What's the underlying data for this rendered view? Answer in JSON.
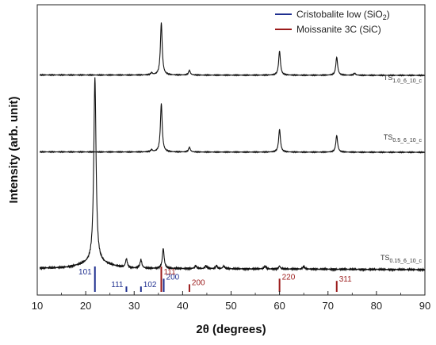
{
  "chart_data": {
    "type": "line",
    "xlabel": "2θ (degrees)",
    "ylabel": "Intensity (arb. unit)",
    "xlim": [
      10,
      90
    ],
    "x_ticks": [
      "10",
      "20",
      "30",
      "40",
      "50",
      "60",
      "70",
      "80",
      "90"
    ],
    "legend": {
      "placement": "top-right",
      "entries": [
        {
          "label_main": "Cristobalite low (SiO",
          "label_sub": "2",
          "label_end": ")",
          "color": "#1f2f8f"
        },
        {
          "label_main": "Moissanite 3C (SiC)",
          "label_sub": "",
          "label_end": "",
          "color": "#9b1b1b"
        }
      ]
    },
    "series": [
      {
        "name_main": "TS",
        "name_sub": "1.0_6_10_c",
        "baseline": 0.9,
        "peaks": [
          [
            33.6,
            0.03
          ],
          [
            35.6,
            0.78
          ],
          [
            41.4,
            0.07
          ],
          [
            60.0,
            0.36
          ],
          [
            71.8,
            0.27
          ],
          [
            75.5,
            0.03
          ]
        ]
      },
      {
        "name_main": "TS",
        "name_sub": "0.5_6_10_c",
        "baseline": 0.8,
        "peaks": [
          [
            33.6,
            0.03
          ],
          [
            35.6,
            0.72
          ],
          [
            41.4,
            0.07
          ],
          [
            60.0,
            0.34
          ],
          [
            71.8,
            0.25
          ]
        ]
      },
      {
        "name_main": "TS",
        "name_sub": "0.15_6_10_c",
        "baseline": 0.7,
        "peaks": [
          [
            21.9,
            1.3
          ],
          [
            28.4,
            0.06
          ],
          [
            31.4,
            0.06
          ],
          [
            36.0,
            0.14
          ],
          [
            42.7,
            0.02
          ],
          [
            44.8,
            0.02
          ],
          [
            47.0,
            0.02
          ],
          [
            48.5,
            0.02
          ],
          [
            57.0,
            0.02
          ],
          [
            60.0,
            0.02
          ],
          [
            65.0,
            0.02
          ]
        ]
      }
    ],
    "reference_lines": [
      {
        "phase": "Cristobalite low (SiO2)",
        "color": "#1f2f8f",
        "peaks": [
          {
            "x": 21.9,
            "h": 1.0,
            "label": "101",
            "side": "left"
          },
          {
            "x": 28.4,
            "h": 0.1,
            "label": "111",
            "side": "left"
          },
          {
            "x": 31.4,
            "h": 0.1,
            "label": "102",
            "side": "right"
          },
          {
            "x": 36.1,
            "h": 0.45,
            "label": "200",
            "side": "right"
          }
        ]
      },
      {
        "phase": "Moissanite 3C (SiC)",
        "color": "#9b1b1b",
        "peaks": [
          {
            "x": 35.6,
            "h": 1.0,
            "label": "111",
            "side": "right"
          },
          {
            "x": 41.4,
            "h": 0.2,
            "label": "200",
            "side": "right"
          },
          {
            "x": 60.0,
            "h": 0.45,
            "label": "220",
            "side": "right"
          },
          {
            "x": 71.8,
            "h": 0.35,
            "label": "311",
            "side": "right"
          }
        ]
      }
    ]
  }
}
